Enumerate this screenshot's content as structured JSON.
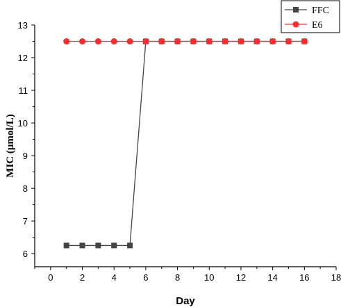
{
  "chart_data": {
    "type": "line",
    "xlabel": "Day",
    "ylabel": "MIC (μmol/L)",
    "xlim": [
      -1,
      18
    ],
    "ylim": [
      5.6,
      13
    ],
    "xticks": [
      0,
      2,
      4,
      6,
      8,
      10,
      12,
      14,
      16,
      18
    ],
    "yticks": [
      6,
      7,
      8,
      9,
      10,
      11,
      12,
      13
    ],
    "legend": "top-right",
    "grid": false,
    "x": [
      1,
      2,
      3,
      4,
      5,
      6,
      7,
      8,
      9,
      10,
      11,
      12,
      13,
      14,
      15,
      16
    ],
    "series": [
      {
        "name": "FFC",
        "marker": "square",
        "color": "#444444",
        "values": [
          6.25,
          6.25,
          6.25,
          6.25,
          6.25,
          12.5,
          12.5,
          12.5,
          12.5,
          12.5,
          12.5,
          12.5,
          12.5,
          12.5,
          12.5,
          12.5
        ]
      },
      {
        "name": "E6",
        "marker": "circle",
        "color": "#ff2a2a",
        "values": [
          12.5,
          12.5,
          12.5,
          12.5,
          12.5,
          12.5,
          12.5,
          12.5,
          12.5,
          12.5,
          12.5,
          12.5,
          12.5,
          12.5,
          12.5,
          12.5
        ]
      }
    ]
  }
}
